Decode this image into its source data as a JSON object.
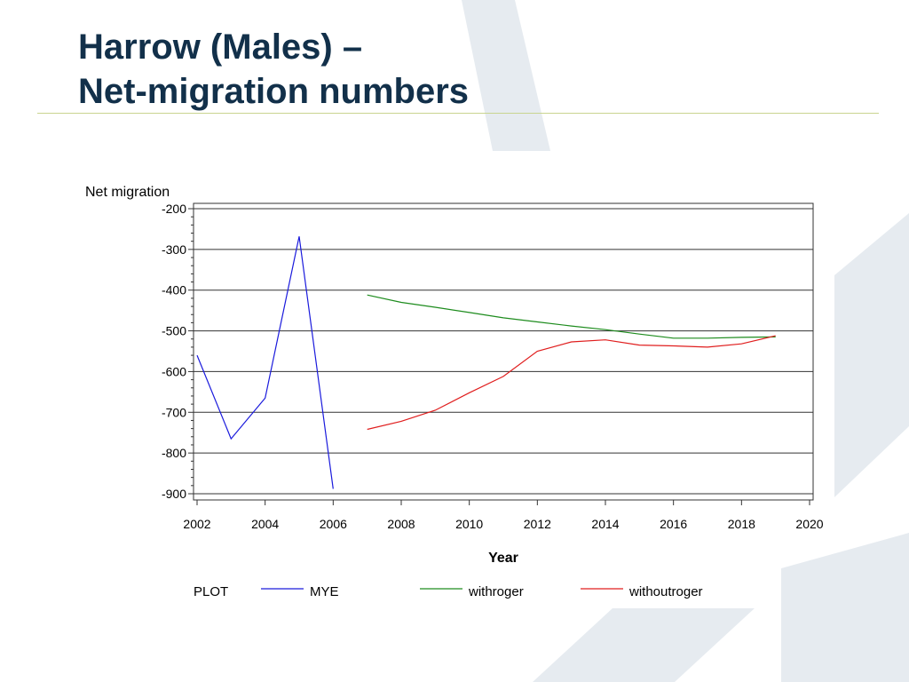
{
  "slide": {
    "title_line1": "Harrow (Males) –",
    "title_line2": "Net-migration numbers"
  },
  "colors": {
    "title": "#12304a",
    "rule": "#c9d48f",
    "background_shape": "#e6ebf0",
    "MYE": "#1a1adc",
    "withroger": "#1e8c1e",
    "withoutroger": "#e01e1e"
  },
  "chart_data": {
    "type": "line",
    "title": "",
    "xlabel": "Year",
    "ylabel": "Net migration",
    "xlim": [
      2002,
      2020
    ],
    "ylim": [
      -900,
      -200
    ],
    "x_ticks": [
      2002,
      2004,
      2006,
      2008,
      2010,
      2012,
      2014,
      2016,
      2018,
      2020
    ],
    "y_ticks": [
      -200,
      -300,
      -400,
      -500,
      -600,
      -700,
      -800,
      -900
    ],
    "grid": "horizontal",
    "legend_title": "PLOT",
    "legend_position": "bottom",
    "series": [
      {
        "name": "MYE",
        "color": "#1a1adc",
        "x": [
          2002,
          2003,
          2004,
          2005,
          2006
        ],
        "y": [
          -560,
          -765,
          -665,
          -268,
          -888
        ]
      },
      {
        "name": "withroger",
        "color": "#1e8c1e",
        "x": [
          2007,
          2008,
          2009,
          2010,
          2011,
          2012,
          2013,
          2014,
          2015,
          2016,
          2017,
          2018,
          2019
        ],
        "y": [
          -412,
          -430,
          -442,
          -455,
          -468,
          -478,
          -488,
          -497,
          -508,
          -518,
          -518,
          -516,
          -515
        ]
      },
      {
        "name": "withoutroger",
        "color": "#e01e1e",
        "x": [
          2007,
          2008,
          2009,
          2010,
          2011,
          2012,
          2013,
          2014,
          2015,
          2016,
          2017,
          2018,
          2019
        ],
        "y": [
          -742,
          -722,
          -695,
          -652,
          -612,
          -550,
          -527,
          -522,
          -535,
          -537,
          -540,
          -532,
          -512
        ]
      }
    ]
  }
}
